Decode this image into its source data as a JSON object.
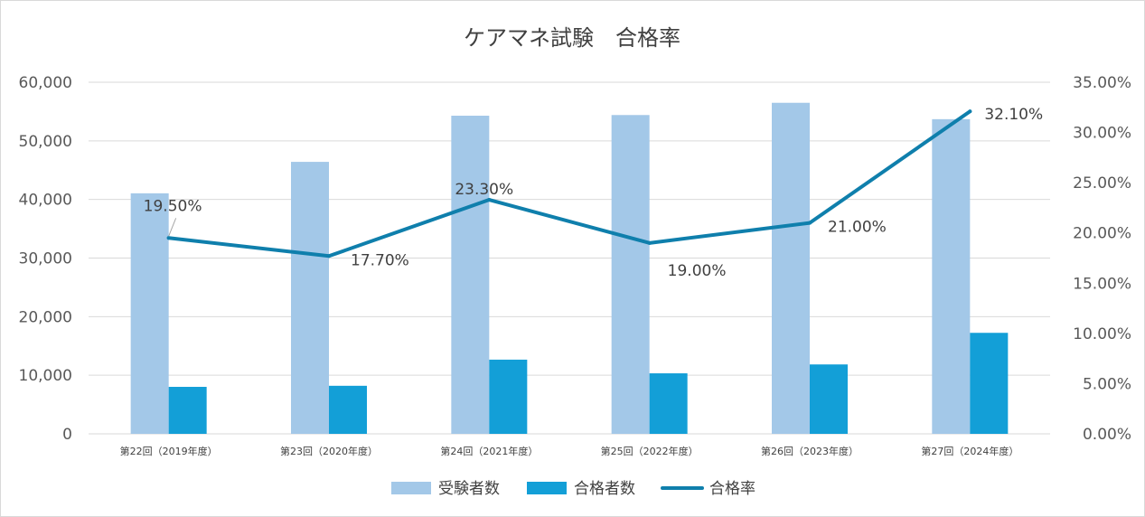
{
  "chart_data": {
    "type": "bar",
    "title": "ケアマネ試験　合格率",
    "categories": [
      "第22回（2019年度）",
      "第23回（2020年度）",
      "第24回（2021年度）",
      "第25回（2022年度）",
      "第26回（2023年度）",
      "第27回（2024年度）"
    ],
    "series": [
      {
        "name": "受験者数",
        "type": "bar",
        "axis": "left",
        "color": "#a3c8e8",
        "values": [
          41049,
          46415,
          54290,
          54406,
          56494,
          53699
        ]
      },
      {
        "name": "合格者数",
        "type": "bar",
        "axis": "left",
        "color": "#139fd7",
        "values": [
          8018,
          8200,
          12662,
          10328,
          11844,
          17237
        ]
      },
      {
        "name": "合格率",
        "type": "line",
        "axis": "right",
        "color": "#0f7fac",
        "values": [
          19.5,
          17.7,
          23.3,
          19.0,
          21.0,
          32.1
        ],
        "labels": [
          "19.50%",
          "17.70%",
          "23.30%",
          "19.00%",
          "21.00%",
          "32.10%"
        ]
      }
    ],
    "y_left": {
      "min": 0,
      "max": 60000,
      "ticks": [
        "0",
        "10,000",
        "20,000",
        "30,000",
        "40,000",
        "50,000",
        "60,000"
      ]
    },
    "y_right": {
      "min": 0,
      "max": 35,
      "ticks": [
        "0.00%",
        "5.00%",
        "10.00%",
        "15.00%",
        "20.00%",
        "25.00%",
        "30.00%",
        "35.00%"
      ]
    },
    "grid": true,
    "legend_position": "bottom"
  }
}
